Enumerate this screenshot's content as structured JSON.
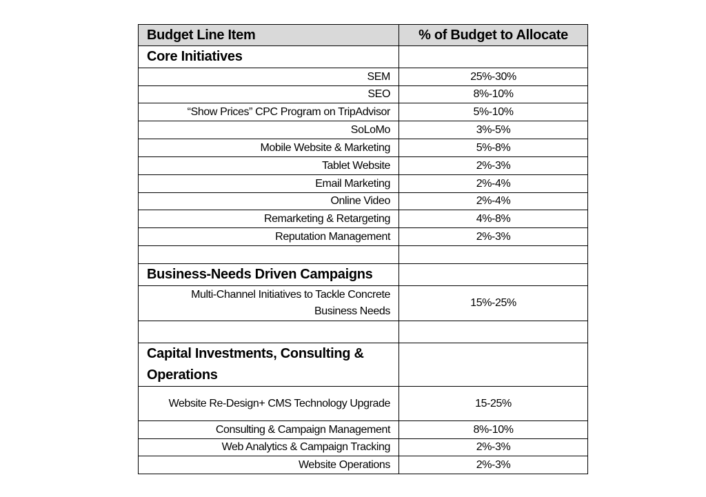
{
  "table": {
    "headers": [
      "Budget Line Item",
      "% of Budget to Allocate"
    ],
    "rows": [
      {
        "type": "section",
        "item": "Core Initiatives",
        "pct": ""
      },
      {
        "type": "line",
        "item": "SEM",
        "pct": "25%-30%"
      },
      {
        "type": "line",
        "item": "SEO",
        "pct": "8%-10%"
      },
      {
        "type": "line",
        "item": "“Show Prices” CPC Program on TripAdvisor",
        "pct": "5%-10%"
      },
      {
        "type": "line",
        "item": "SoLoMo",
        "pct": "3%-5%"
      },
      {
        "type": "line",
        "item": "Mobile Website & Marketing",
        "pct": "5%-8%"
      },
      {
        "type": "line",
        "item": "Tablet Website",
        "pct": "2%-3%"
      },
      {
        "type": "line",
        "item": "Email Marketing",
        "pct": "2%-4%"
      },
      {
        "type": "line",
        "item": "Online Video",
        "pct": "2%-4%"
      },
      {
        "type": "line",
        "item": "Remarketing & Retargeting",
        "pct": "4%-8%"
      },
      {
        "type": "line",
        "item": "Reputation Management",
        "pct": "2%-3%"
      },
      {
        "type": "empty",
        "item": "",
        "pct": ""
      },
      {
        "type": "section",
        "item": "Business-Needs Driven Campaigns",
        "pct": ""
      },
      {
        "type": "line",
        "item": "Multi-Channel Initiatives to Tackle Concrete Business Needs",
        "pct": "15%-25%"
      },
      {
        "type": "empty",
        "item": "",
        "pct": ""
      },
      {
        "type": "section",
        "item": "Capital Investments, Consulting & Operations",
        "pct": ""
      },
      {
        "type": "line",
        "item": "Website Re-Design+ CMS Technology Upgrade",
        "pct": "15-25%"
      },
      {
        "type": "line",
        "item": "Consulting & Campaign Management",
        "pct": "8%-10%"
      },
      {
        "type": "line",
        "item": "Web Analytics & Campaign Tracking",
        "pct": "2%-3%"
      },
      {
        "type": "line",
        "item": "Website Operations",
        "pct": "2%-3%"
      }
    ]
  },
  "colors": {
    "header_bg": "#d9d9d9",
    "border": "#000000"
  }
}
